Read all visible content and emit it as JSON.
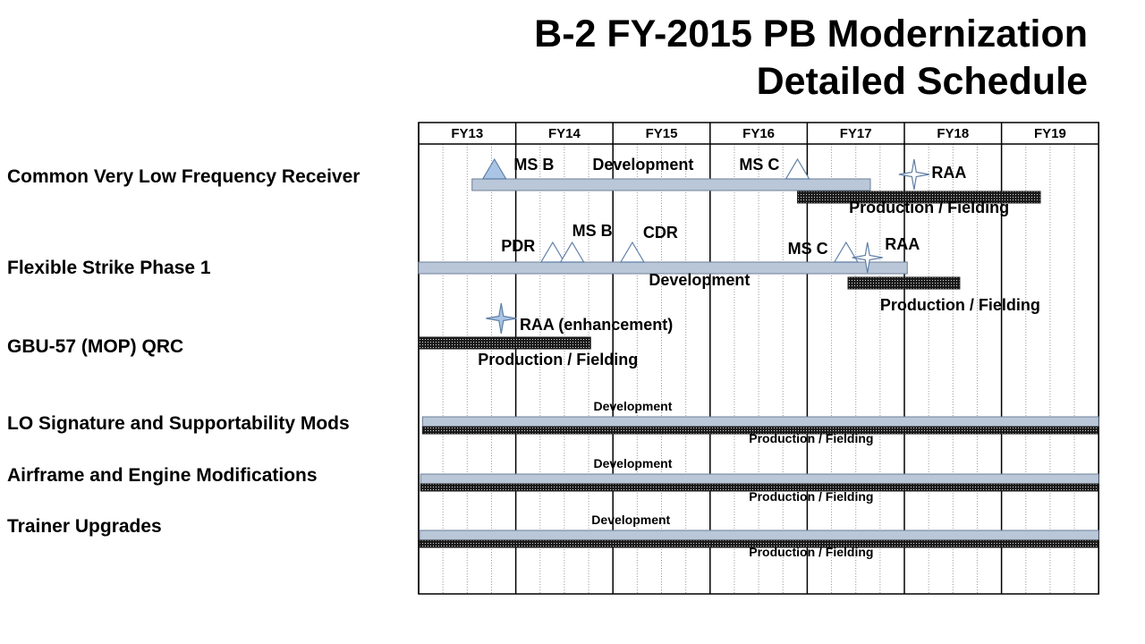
{
  "title": {
    "line1": "B-2 FY-2015 PB Modernization",
    "line2": "Detailed Schedule"
  },
  "colors": {
    "development_bar": "#b9c7d8",
    "development_border": "#6d7f97",
    "production_bar": "#1a1a1a",
    "milestone_fill": "#a9c4e4",
    "milestone_stroke": "#5f7fa6"
  },
  "schedule": {
    "fiscal_years": [
      "FY13",
      "FY14",
      "FY15",
      "FY16",
      "FY17",
      "FY18",
      "FY19"
    ],
    "quarters_per_year": 4,
    "programs": [
      {
        "name": "Common Very Low Frequency Receiver",
        "development": {
          "start": 0.55,
          "end": 4.65
        },
        "production": {
          "start": 3.9,
          "end": 6.4
        },
        "milestones": [
          {
            "type": "triangle-filled",
            "at": 0.78
          },
          {
            "type": "triangle",
            "at": 3.9
          },
          {
            "type": "star",
            "at": 5.1
          }
        ],
        "labels": [
          {
            "text": "MS B",
            "at": 0.98
          },
          {
            "text": "Development",
            "at": 1.79
          },
          {
            "text": "MS C",
            "at": 3.3
          },
          {
            "text": "RAA",
            "at": 5.28
          },
          {
            "text": "Production / Fielding",
            "at": 4.43
          }
        ]
      },
      {
        "name": "Flexible Strike Phase 1",
        "development": {
          "start": 0.0,
          "end": 5.03
        },
        "production": {
          "start": 4.42,
          "end": 5.57
        },
        "milestones": [
          {
            "type": "triangle",
            "at": 1.38
          },
          {
            "type": "triangle",
            "at": 1.58
          },
          {
            "type": "triangle",
            "at": 2.2
          },
          {
            "type": "triangle",
            "at": 4.4
          },
          {
            "type": "star",
            "at": 4.62
          }
        ],
        "labels": [
          {
            "text": "PDR",
            "at": 0.85
          },
          {
            "text": "MS B",
            "at": 1.58
          },
          {
            "text": "CDR",
            "at": 2.31
          },
          {
            "text": "MS C",
            "at": 3.8
          },
          {
            "text": "RAA",
            "at": 4.8
          },
          {
            "text": "Development",
            "at": 2.37
          },
          {
            "text": "Production / Fielding",
            "at": 4.75
          }
        ]
      },
      {
        "name": "GBU-57 (MOP) QRC",
        "development": null,
        "production": {
          "start": 0.0,
          "end": 1.77
        },
        "milestones": [
          {
            "type": "star-filled",
            "at": 0.85
          }
        ],
        "labels": [
          {
            "text": "RAA (enhancement)",
            "at": 1.04
          },
          {
            "text": "Production / Fielding",
            "at": 0.61
          }
        ]
      },
      {
        "name": "LO Signature and Supportability Mods",
        "development": {
          "start": 0.04,
          "end": 7.0
        },
        "production": {
          "start": 0.04,
          "end": 7.0
        },
        "milestones": [],
        "labels": [
          {
            "text": "Development",
            "at": 1.8
          },
          {
            "text": "Production / Fielding",
            "at": 3.4
          }
        ]
      },
      {
        "name": "Airframe and Engine Modifications",
        "development": {
          "start": 0.02,
          "end": 7.0
        },
        "production": {
          "start": 0.02,
          "end": 7.0
        },
        "milestones": [],
        "labels": [
          {
            "text": "Development",
            "at": 1.8
          },
          {
            "text": "Production / Fielding",
            "at": 3.4
          }
        ]
      },
      {
        "name": "Trainer Upgrades",
        "development": {
          "start": 0.01,
          "end": 7.0
        },
        "production": {
          "start": 0.01,
          "end": 7.0
        },
        "milestones": [],
        "labels": [
          {
            "text": "Development",
            "at": 1.78
          },
          {
            "text": "Production / Fielding",
            "at": 3.4
          }
        ]
      }
    ]
  }
}
